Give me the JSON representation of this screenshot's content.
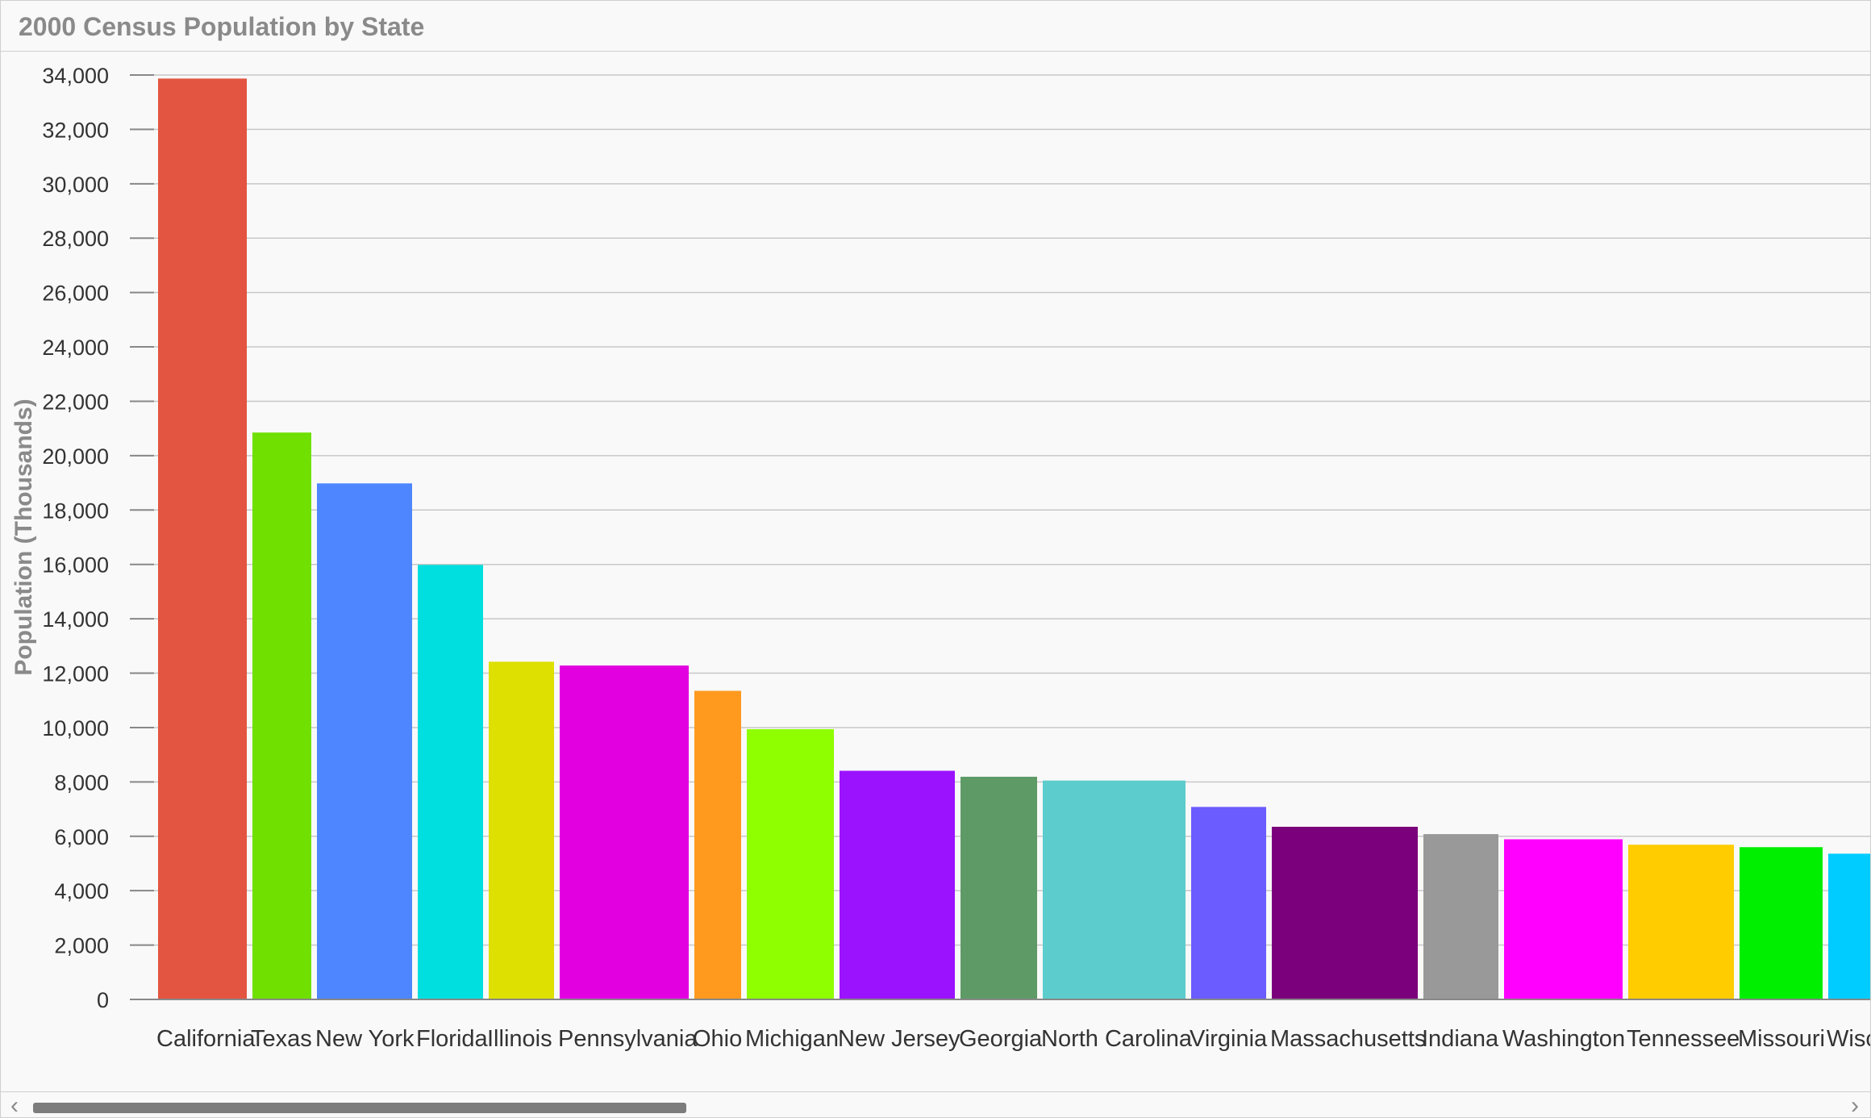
{
  "chart_data": {
    "type": "bar",
    "title": "2000 Census Population by State",
    "ylabel": "Population (Thousands)",
    "xlabel": "",
    "ylim": [
      0,
      34000
    ],
    "yticks": [
      "0",
      "2,000",
      "4,000",
      "6,000",
      "8,000",
      "10,000",
      "12,000",
      "14,000",
      "16,000",
      "18,000",
      "20,000",
      "22,000",
      "24,000",
      "26,000",
      "28,000",
      "30,000",
      "32,000",
      "34,000"
    ],
    "grid": true,
    "categories": [
      "California",
      "Texas",
      "New York",
      "Florida",
      "Illinois",
      "Pennsylvania",
      "Ohio",
      "Michigan",
      "New Jersey",
      "Georgia",
      "North Carolina",
      "Virginia",
      "Massachusetts",
      "Indiana",
      "Washington",
      "Tennessee",
      "Missouri",
      "Wisc"
    ],
    "values": [
      33870,
      20850,
      18980,
      15980,
      12420,
      12280,
      11350,
      9940,
      8410,
      8190,
      8050,
      7080,
      6350,
      6080,
      5890,
      5690,
      5600,
      5360
    ],
    "colors": [
      "#e35541",
      "#6fe000",
      "#4d86ff",
      "#00dfe0",
      "#dde000",
      "#e200e0",
      "#ff9a1f",
      "#8fff00",
      "#9b12ff",
      "#5e9a66",
      "#5ccccc",
      "#6a5cff",
      "#7b007b",
      "#999999",
      "#ff00ff",
      "#ffcc00",
      "#00ee00",
      "#00ccff"
    ]
  },
  "scrollbar": {
    "left_arrow": "‹",
    "right_arrow": "›"
  }
}
